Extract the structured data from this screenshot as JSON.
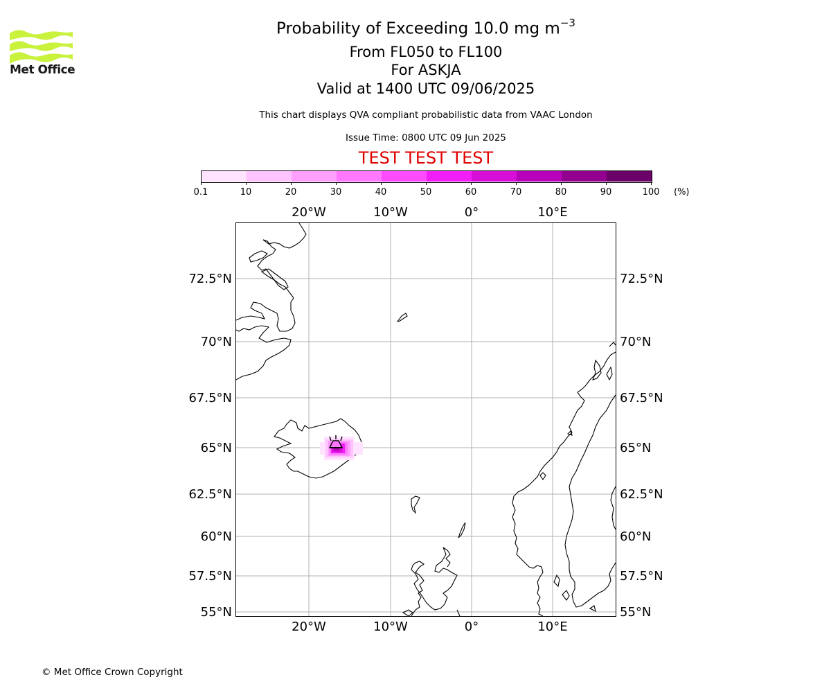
{
  "header": {
    "title_prefix": "Probability of Exceeding 10.0 mg m",
    "title_exponent": "−3",
    "levels": "From FL050 to FL100",
    "volcano": "For ASKJA",
    "valid": "Valid at 1400 UTC 09/06/2025",
    "disclaimer": "This chart displays QVA compliant probabilistic data from VAAC London",
    "issue_time": "Issue Time: 0800 UTC 09 Jun 2025",
    "test_banner": "TEST TEST TEST"
  },
  "logo": {
    "text": "Met Office",
    "color": "#c8f23c"
  },
  "colorbar": {
    "unit": "(%)",
    "ticks": [
      "0.1",
      "10",
      "20",
      "30",
      "40",
      "50",
      "60",
      "70",
      "80",
      "90",
      "100"
    ],
    "colors": [
      "#ffe3ff",
      "#ffc4ff",
      "#ffa0ff",
      "#ff78ff",
      "#ff4bff",
      "#f21ef7",
      "#d60ed8",
      "#b700b9",
      "#93008f",
      "#6b0068"
    ]
  },
  "map": {
    "lon_labels": [
      "20°W",
      "10°W",
      "0°",
      "10°E"
    ],
    "lat_labels": [
      "72.5°N",
      "70°N",
      "67.5°N",
      "65°N",
      "62.5°N",
      "60°N",
      "57.5°N",
      "55°N"
    ],
    "volcano_marker": "volcano-icon"
  },
  "footer": {
    "copyright": "© Met Office Crown Copyright"
  }
}
